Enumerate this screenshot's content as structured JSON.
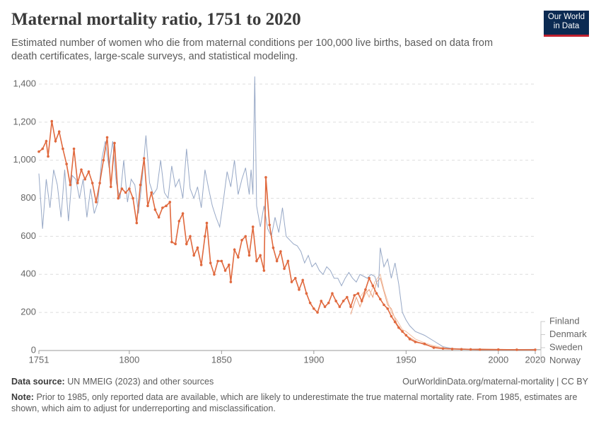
{
  "chart_data": {
    "type": "line",
    "title": "Maternal mortality ratio, 1751 to 2020",
    "subtitle": "Estimated number of women who die from maternal conditions per 100,000 live births, based on data from death certificates, large-scale surveys, and statistical modeling.",
    "logo": [
      "Our World",
      "in Data"
    ],
    "source_label": "Data source:",
    "source": "UN MMEIG (2023) and other sources",
    "url": "OurWorldinData.org/maternal-mortality | CC BY",
    "note_label": "Note:",
    "note": "Prior to 1985, only reported data are available, which are likely to underestimate the true maternal mortality rate. From 1985, estimates are shown, which aim to adjust for underreporting and misclassification.",
    "xlim": [
      1751,
      2020
    ],
    "xticks": [
      1751,
      1800,
      1850,
      1900,
      1950,
      2000,
      2020
    ],
    "ylim": [
      0,
      1400
    ],
    "yticks": [
      0,
      200,
      400,
      600,
      800,
      {
        "value": 1000,
        "label": "1,000"
      },
      {
        "value": 1200,
        "label": "1,200"
      },
      {
        "value": 1400,
        "label": "1,400"
      }
    ],
    "grid": true,
    "series": [
      {
        "name": "Finland",
        "color": "#97a8c6",
        "markers": false,
        "x": [
          1751,
          1753,
          1755,
          1757,
          1759,
          1761,
          1763,
          1765,
          1767,
          1769,
          1771,
          1773,
          1775,
          1777,
          1779,
          1781,
          1783,
          1785,
          1787,
          1789,
          1791,
          1793,
          1795,
          1797,
          1799,
          1801,
          1803,
          1805,
          1807,
          1809,
          1811,
          1813,
          1815,
          1817,
          1819,
          1821,
          1823,
          1825,
          1827,
          1829,
          1831,
          1833,
          1835,
          1837,
          1839,
          1841,
          1843,
          1845,
          1847,
          1849,
          1851,
          1853,
          1855,
          1857,
          1859,
          1861,
          1863,
          1865,
          1866,
          1867,
          1868,
          1869,
          1871,
          1873,
          1875,
          1877,
          1879,
          1881,
          1883,
          1885,
          1887,
          1889,
          1891,
          1893,
          1895,
          1897,
          1899,
          1901,
          1903,
          1905,
          1907,
          1909,
          1911,
          1913,
          1915,
          1917,
          1919,
          1921,
          1923,
          1925,
          1927,
          1929,
          1931,
          1933,
          1935,
          1936,
          1938,
          1940,
          1942,
          1944,
          1946,
          1948,
          1950,
          1952,
          1955,
          1960,
          1965,
          1970,
          1975,
          1980,
          1990,
          2000,
          2020
        ],
        "values": [
          930,
          640,
          900,
          750,
          950,
          870,
          700,
          950,
          680,
          920,
          900,
          800,
          900,
          700,
          850,
          720,
          780,
          1000,
          1100,
          960,
          1100,
          880,
          800,
          1000,
          780,
          900,
          870,
          720,
          900,
          1130,
          880,
          820,
          850,
          1000,
          830,
          800,
          970,
          860,
          900,
          800,
          1060,
          850,
          800,
          860,
          750,
          950,
          850,
          760,
          700,
          650,
          790,
          940,
          860,
          1000,
          820,
          900,
          960,
          820,
          950,
          820,
          1440,
          760,
          650,
          760,
          640,
          600,
          700,
          620,
          750,
          600,
          580,
          560,
          550,
          520,
          460,
          500,
          440,
          460,
          420,
          400,
          440,
          420,
          380,
          380,
          340,
          380,
          410,
          380,
          360,
          400,
          390,
          380,
          400,
          390,
          330,
          540,
          440,
          480,
          380,
          460,
          350,
          200,
          160,
          130,
          100,
          80,
          50,
          20,
          10,
          8,
          6,
          5,
          6
        ]
      },
      {
        "name": "Denmark",
        "color": "#e99e7a",
        "markers": false,
        "x": [
          1920,
          1923,
          1925,
          1928,
          1930,
          1932,
          1934,
          1936,
          1938,
          1940,
          1942,
          1945,
          1948,
          1950,
          1955,
          1960,
          1970,
          1980,
          1990,
          2000,
          2010,
          2020
        ],
        "values": [
          190,
          280,
          230,
          300,
          320,
          280,
          360,
          380,
          310,
          240,
          220,
          140,
          100,
          80,
          50,
          30,
          10,
          6,
          8,
          6,
          5,
          5
        ]
      },
      {
        "name": "Sweden",
        "color": "#e0693e",
        "markers": true,
        "x": [
          1751,
          1753,
          1755,
          1756,
          1758,
          1760,
          1762,
          1764,
          1766,
          1768,
          1770,
          1772,
          1774,
          1776,
          1778,
          1780,
          1782,
          1784,
          1786,
          1788,
          1790,
          1792,
          1794,
          1796,
          1798,
          1800,
          1802,
          1804,
          1806,
          1808,
          1810,
          1812,
          1814,
          1816,
          1818,
          1820,
          1822,
          1823,
          1825,
          1827,
          1829,
          1831,
          1833,
          1835,
          1837,
          1839,
          1841,
          1842,
          1844,
          1846,
          1848,
          1850,
          1852,
          1854,
          1855,
          1857,
          1859,
          1861,
          1863,
          1865,
          1867,
          1869,
          1871,
          1873,
          1874,
          1876,
          1878,
          1880,
          1882,
          1884,
          1886,
          1888,
          1890,
          1892,
          1894,
          1896,
          1898,
          1900,
          1902,
          1904,
          1906,
          1908,
          1910,
          1912,
          1914,
          1916,
          1918,
          1920,
          1922,
          1924,
          1926,
          1928,
          1930,
          1932,
          1934,
          1936,
          1938,
          1940,
          1942,
          1944,
          1946,
          1948,
          1950,
          1952,
          1955,
          1960,
          1965,
          1970,
          1975,
          1980,
          1985,
          1990,
          2000,
          2010,
          2020
        ],
        "values": [
          1045,
          1060,
          1100,
          1020,
          1205,
          1100,
          1150,
          1060,
          980,
          870,
          1060,
          880,
          950,
          900,
          940,
          880,
          780,
          880,
          1000,
          1120,
          860,
          1090,
          800,
          850,
          830,
          850,
          800,
          670,
          870,
          1010,
          760,
          830,
          740,
          700,
          750,
          760,
          780,
          570,
          560,
          680,
          720,
          560,
          600,
          500,
          540,
          450,
          600,
          670,
          460,
          400,
          470,
          470,
          420,
          450,
          360,
          530,
          490,
          580,
          600,
          500,
          650,
          470,
          500,
          420,
          910,
          660,
          540,
          470,
          520,
          430,
          470,
          360,
          380,
          320,
          370,
          300,
          250,
          220,
          200,
          260,
          230,
          250,
          300,
          260,
          230,
          260,
          280,
          230,
          290,
          300,
          260,
          320,
          380,
          340,
          300,
          270,
          240,
          220,
          180,
          150,
          120,
          100,
          80,
          60,
          45,
          35,
          15,
          10,
          8,
          7,
          6,
          5,
          5,
          4,
          4
        ]
      },
      {
        "name": "Norway",
        "color": "#f1bfa3",
        "markers": false,
        "x": [
          1925,
          1928,
          1930,
          1933,
          1936,
          1938,
          1940,
          1942,
          1945,
          1948,
          1950,
          1955,
          1960,
          1965,
          1970,
          1980,
          1990,
          2000,
          2020
        ],
        "values": [
          280,
          320,
          280,
          360,
          400,
          320,
          260,
          200,
          160,
          110,
          100,
          60,
          40,
          25,
          15,
          8,
          5,
          5,
          3
        ]
      }
    ]
  }
}
